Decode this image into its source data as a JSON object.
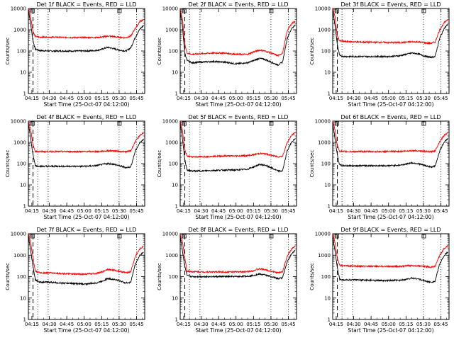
{
  "figure": {
    "colors": {
      "events": "#000000",
      "lld": "#ff0000",
      "background": "#ffffff"
    }
  },
  "chart_data": [
    {
      "type": "line",
      "title": "Det 1f BLACK = Events, RED = LLD",
      "xlabel": "Start Time (25-Oct-07 04:12:00)",
      "ylabel": "Counts/sec",
      "ylog": true,
      "ylim": [
        1,
        10000
      ],
      "yticks": [
        "1",
        "10",
        "100",
        "1000",
        "10000"
      ],
      "xticks": [
        "04:15",
        "04:30",
        "04:45",
        "05:00",
        "05:15",
        "05:30",
        "05:45"
      ],
      "x": [
        "04:12",
        "04:14",
        "04:16",
        "04:18",
        "04:22",
        "04:30",
        "04:40",
        "04:50",
        "05:00",
        "05:10",
        "05:15",
        "05:20",
        "05:25",
        "05:30",
        "05:36",
        "05:40",
        "05:44",
        "05:48",
        "05:51"
      ],
      "series": [
        {
          "name": "Events",
          "values": [
            9000,
            1800,
            300,
            120,
            105,
            100,
            100,
            100,
            100,
            105,
            120,
            150,
            130,
            110,
            100,
            140,
            450,
            1100,
            1600
          ]
        },
        {
          "name": "LLD",
          "values": [
            10000,
            4000,
            800,
            480,
            450,
            450,
            440,
            430,
            430,
            430,
            450,
            500,
            480,
            440,
            420,
            500,
            1200,
            2500,
            3000
          ]
        }
      ],
      "vlines_dashed": [
        "04:16"
      ],
      "vlines_dotted": [
        "04:20",
        "04:29",
        "05:30",
        "05:45"
      ]
    },
    {
      "type": "line",
      "title": "Det 2f BLACK = Events, RED = LLD",
      "xlabel": "Start Time (25-Oct-07 04:12:00)",
      "ylabel": "Counts/sec",
      "ylog": true,
      "ylim": [
        1,
        10000
      ],
      "yticks": [
        "1",
        "10",
        "100",
        "1000",
        "10000"
      ],
      "xticks": [
        "04:15",
        "04:30",
        "04:45",
        "05:00",
        "05:15",
        "05:30",
        "05:45"
      ],
      "x": [
        "04:12",
        "04:14",
        "04:16",
        "04:18",
        "04:22",
        "04:30",
        "04:40",
        "04:50",
        "05:00",
        "05:10",
        "05:15",
        "05:20",
        "05:25",
        "05:30",
        "05:36",
        "05:40",
        "05:44",
        "05:48",
        "05:51"
      ],
      "series": [
        {
          "name": "Events",
          "values": [
            8000,
            1200,
            80,
            35,
            28,
            30,
            32,
            30,
            25,
            28,
            35,
            45,
            40,
            30,
            22,
            30,
            400,
            1200,
            1600
          ]
        },
        {
          "name": "LLD",
          "values": [
            10000,
            3000,
            200,
            80,
            70,
            75,
            80,
            80,
            70,
            70,
            90,
            110,
            100,
            80,
            60,
            80,
            900,
            2000,
            2500
          ]
        }
      ],
      "vlines_dashed": [
        "04:16"
      ],
      "vlines_dotted": [
        "04:20",
        "04:29",
        "05:30",
        "05:45"
      ]
    },
    {
      "type": "line",
      "title": "Det 3f BLACK = Events, RED = LLD",
      "xlabel": "Start Time (25-Oct-07 04:12:00)",
      "ylabel": "Counts/sec",
      "ylog": true,
      "ylim": [
        1,
        10000
      ],
      "yticks": [
        "1",
        "10",
        "100",
        "1000",
        "10000"
      ],
      "xticks": [
        "04:15",
        "04:30",
        "04:45",
        "05:00",
        "05:15",
        "05:30",
        "05:45"
      ],
      "x": [
        "04:12",
        "04:14",
        "04:16",
        "04:18",
        "04:22",
        "04:30",
        "04:40",
        "04:50",
        "05:00",
        "05:10",
        "05:15",
        "05:20",
        "05:25",
        "05:30",
        "05:36",
        "05:40",
        "05:44",
        "05:48",
        "05:51"
      ],
      "series": [
        {
          "name": "Events",
          "values": [
            9000,
            1500,
            200,
            60,
            55,
            55,
            55,
            55,
            55,
            60,
            70,
            80,
            75,
            60,
            50,
            55,
            400,
            1200,
            1800
          ]
        },
        {
          "name": "LLD",
          "values": [
            10000,
            4000,
            500,
            300,
            280,
            270,
            260,
            260,
            250,
            250,
            260,
            270,
            270,
            250,
            230,
            260,
            1000,
            2200,
            3000
          ]
        }
      ],
      "vlines_dashed": [
        "04:16"
      ],
      "vlines_dotted": [
        "04:20",
        "04:29",
        "05:30",
        "05:45"
      ]
    },
    {
      "type": "line",
      "title": "Det 4f BLACK = Events, RED = LLD",
      "xlabel": "Start Time (25-Oct-07 04:12:00)",
      "ylabel": "Counts/sec",
      "ylog": true,
      "ylim": [
        1,
        10000
      ],
      "yticks": [
        "1",
        "10",
        "100",
        "1000",
        "10000"
      ],
      "xticks": [
        "04:15",
        "04:30",
        "04:45",
        "05:00",
        "05:15",
        "05:30",
        "05:45"
      ],
      "x": [
        "04:12",
        "04:14",
        "04:16",
        "04:18",
        "04:22",
        "04:30",
        "04:40",
        "04:50",
        "05:00",
        "05:10",
        "05:15",
        "05:20",
        "05:25",
        "05:30",
        "05:36",
        "05:40",
        "05:44",
        "05:48",
        "05:51"
      ],
      "series": [
        {
          "name": "Events",
          "values": [
            8000,
            1500,
            250,
            80,
            75,
            75,
            75,
            75,
            75,
            80,
            90,
            100,
            95,
            80,
            65,
            70,
            400,
            1000,
            1400
          ]
        },
        {
          "name": "LLD",
          "values": [
            10000,
            4000,
            700,
            380,
            370,
            370,
            370,
            370,
            370,
            370,
            380,
            400,
            400,
            380,
            360,
            400,
            1100,
            2200,
            2800
          ]
        }
      ],
      "vlines_dashed": [
        "04:16"
      ],
      "vlines_dotted": [
        "04:20",
        "04:29",
        "05:30",
        "05:45"
      ]
    },
    {
      "type": "line",
      "title": "Det 5f BLACK = Events, RED = LLD",
      "xlabel": "Start Time (25-Oct-07 04:12:00)",
      "ylabel": "Counts/sec",
      "ylog": true,
      "ylim": [
        1,
        10000
      ],
      "yticks": [
        "1",
        "10",
        "100",
        "1000",
        "10000"
      ],
      "xticks": [
        "04:15",
        "04:30",
        "04:45",
        "05:00",
        "05:15",
        "05:30",
        "05:45"
      ],
      "x": [
        "04:12",
        "04:14",
        "04:16",
        "04:18",
        "04:22",
        "04:30",
        "04:40",
        "04:50",
        "05:00",
        "05:10",
        "05:15",
        "05:20",
        "05:25",
        "05:30",
        "05:36",
        "05:40",
        "05:44",
        "05:48",
        "05:51"
      ],
      "series": [
        {
          "name": "Events",
          "values": [
            8000,
            1300,
            150,
            50,
            45,
            45,
            48,
            50,
            50,
            55,
            70,
            90,
            85,
            65,
            45,
            45,
            400,
            1100,
            1500
          ]
        },
        {
          "name": "LLD",
          "values": [
            10000,
            3500,
            450,
            220,
            210,
            210,
            220,
            230,
            230,
            240,
            260,
            300,
            290,
            250,
            210,
            220,
            1000,
            2200,
            2800
          ]
        }
      ],
      "vlines_dashed": [
        "04:16"
      ],
      "vlines_dotted": [
        "04:20",
        "04:29",
        "05:30",
        "05:45"
      ]
    },
    {
      "type": "line",
      "title": "Det 6f BLACK = Events, RED = LLD",
      "xlabel": "Start Time (25-Oct-07 04:12:00)",
      "ylabel": "Counts/sec",
      "ylog": true,
      "ylim": [
        1,
        10000
      ],
      "yticks": [
        "1",
        "10",
        "100",
        "1000",
        "10000"
      ],
      "xticks": [
        "04:15",
        "04:30",
        "04:45",
        "05:00",
        "05:15",
        "05:30",
        "05:45"
      ],
      "x": [
        "04:12",
        "04:14",
        "04:16",
        "04:18",
        "04:22",
        "04:30",
        "04:40",
        "04:50",
        "05:00",
        "05:10",
        "05:15",
        "05:20",
        "05:25",
        "05:30",
        "05:36",
        "05:40",
        "05:44",
        "05:48",
        "05:51"
      ],
      "series": [
        {
          "name": "Events",
          "values": [
            8000,
            1500,
            250,
            85,
            80,
            80,
            80,
            80,
            80,
            85,
            95,
            110,
            100,
            85,
            70,
            75,
            400,
            1100,
            1500
          ]
        },
        {
          "name": "LLD",
          "values": [
            10000,
            4000,
            700,
            380,
            370,
            370,
            370,
            370,
            370,
            380,
            390,
            410,
            400,
            380,
            360,
            400,
            1100,
            2200,
            2800
          ]
        }
      ],
      "vlines_dashed": [
        "04:16"
      ],
      "vlines_dotted": [
        "04:20",
        "04:29",
        "05:30",
        "05:45"
      ]
    },
    {
      "type": "line",
      "title": "Det 7f BLACK = Events, RED = LLD",
      "xlabel": "Start Time (25-Oct-07 04:12:00)",
      "ylabel": "Counts/sec",
      "ylog": true,
      "ylim": [
        1,
        10000
      ],
      "yticks": [
        "1",
        "10",
        "100",
        "1000",
        "10000"
      ],
      "xticks": [
        "04:15",
        "04:30",
        "04:45",
        "05:00",
        "05:15",
        "05:30",
        "05:45"
      ],
      "x": [
        "04:12",
        "04:14",
        "04:16",
        "04:18",
        "04:22",
        "04:30",
        "04:40",
        "04:50",
        "05:00",
        "05:10",
        "05:15",
        "05:20",
        "05:25",
        "05:30",
        "05:36",
        "05:40",
        "05:44",
        "05:48",
        "05:51"
      ],
      "series": [
        {
          "name": "Events",
          "values": [
            8000,
            1500,
            300,
            70,
            55,
            55,
            50,
            48,
            45,
            50,
            60,
            80,
            75,
            65,
            50,
            55,
            400,
            1000,
            1400
          ]
        },
        {
          "name": "LLD",
          "values": [
            10000,
            4000,
            700,
            180,
            150,
            150,
            140,
            130,
            130,
            140,
            160,
            220,
            200,
            180,
            150,
            170,
            900,
            2000,
            2600
          ]
        }
      ],
      "vlines_dashed": [
        "04:16"
      ],
      "vlines_dotted": [
        "04:20",
        "04:29",
        "05:30",
        "05:45"
      ]
    },
    {
      "type": "line",
      "title": "Det 8f BLACK = Events, RED = LLD",
      "xlabel": "Start Time (25-Oct-07 04:12:00)",
      "ylabel": "Counts/sec",
      "ylog": true,
      "ylim": [
        1,
        10000
      ],
      "yticks": [
        "1",
        "10",
        "100",
        "1000",
        "10000"
      ],
      "xticks": [
        "04:15",
        "04:30",
        "04:45",
        "05:00",
        "05:15",
        "05:30",
        "05:45"
      ],
      "x": [
        "04:12",
        "04:14",
        "04:16",
        "04:18",
        "04:22",
        "04:30",
        "04:40",
        "04:50",
        "05:00",
        "05:10",
        "05:15",
        "05:20",
        "05:25",
        "05:30",
        "05:36",
        "05:40",
        "05:44",
        "05:48",
        "05:51"
      ],
      "series": [
        {
          "name": "Events",
          "values": [
            8000,
            1500,
            300,
            110,
            100,
            100,
            100,
            100,
            100,
            105,
            115,
            130,
            120,
            100,
            80,
            90,
            500,
            1200,
            1700
          ]
        },
        {
          "name": "LLD",
          "values": [
            10000,
            4000,
            700,
            180,
            170,
            165,
            165,
            165,
            165,
            170,
            190,
            230,
            210,
            180,
            150,
            170,
            900,
            2000,
            2600
          ]
        }
      ],
      "vlines_dashed": [
        "04:16"
      ],
      "vlines_dotted": [
        "04:20",
        "04:29",
        "05:30",
        "05:45"
      ]
    },
    {
      "type": "line",
      "title": "Det 9f BLACK = Events, RED = LLD",
      "xlabel": "Start Time (25-Oct-07 04:12:00)",
      "ylabel": "Counts/sec",
      "ylog": true,
      "ylim": [
        1,
        10000
      ],
      "yticks": [
        "1",
        "10",
        "100",
        "1000",
        "10000"
      ],
      "xticks": [
        "04:15",
        "04:30",
        "04:45",
        "05:00",
        "05:15",
        "05:30",
        "05:45"
      ],
      "x": [
        "04:12",
        "04:14",
        "04:16",
        "04:18",
        "04:22",
        "04:30",
        "04:40",
        "04:50",
        "05:00",
        "05:10",
        "05:15",
        "05:20",
        "05:25",
        "05:30",
        "05:36",
        "05:40",
        "05:44",
        "05:48",
        "05:51"
      ],
      "series": [
        {
          "name": "Events",
          "values": [
            8000,
            1500,
            250,
            75,
            70,
            70,
            68,
            66,
            65,
            68,
            75,
            85,
            80,
            65,
            55,
            60,
            400,
            1000,
            1400
          ]
        },
        {
          "name": "LLD",
          "values": [
            10000,
            4000,
            700,
            330,
            320,
            310,
            300,
            300,
            300,
            300,
            310,
            330,
            320,
            300,
            280,
            300,
            1000,
            2100,
            2700
          ]
        }
      ],
      "vlines_dashed": [
        "04:16"
      ],
      "vlines_dotted": [
        "04:20",
        "04:29",
        "05:30",
        "05:45"
      ]
    }
  ]
}
